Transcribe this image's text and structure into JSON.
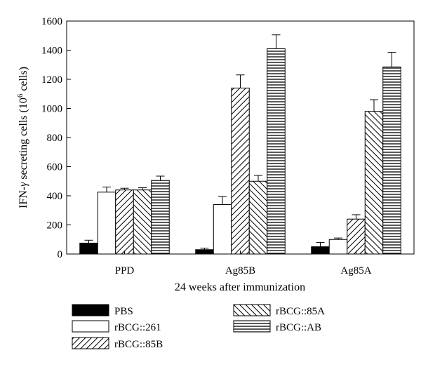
{
  "chart_data": {
    "type": "bar",
    "ylabel_prefix": "IFN-",
    "ylabel_greek": "γ",
    "ylabel_mid": " secreting cells (10",
    "ylabel_sup": "6",
    "ylabel_suffix": " cells)",
    "xlabel": "24 weeks after immunization",
    "ylim": [
      0,
      1600
    ],
    "yticks": [
      0,
      200,
      400,
      600,
      800,
      1000,
      1200,
      1400,
      1600
    ],
    "categories": [
      "PPD",
      "Ag85B",
      "Ag85A"
    ],
    "grid": false,
    "legend_position": "bottom",
    "series": [
      {
        "name": "PBS",
        "pattern": "solid-black",
        "values": [
          75,
          30,
          50
        ],
        "errors": [
          20,
          10,
          30
        ]
      },
      {
        "name": "rBCG::261",
        "pattern": "white",
        "values": [
          425,
          340,
          100
        ],
        "errors": [
          35,
          55,
          10
        ]
      },
      {
        "name": "rBCG::85B",
        "pattern": "diagonal-forward",
        "values": [
          440,
          1140,
          240
        ],
        "errors": [
          12,
          90,
          30
        ]
      },
      {
        "name": "rBCG::85A",
        "pattern": "diagonal-back",
        "values": [
          440,
          500,
          980
        ],
        "errors": [
          15,
          40,
          80
        ]
      },
      {
        "name": "rBCG::AB",
        "pattern": "horizontal",
        "values": [
          505,
          1410,
          1285
        ],
        "errors": [
          30,
          95,
          100
        ]
      }
    ]
  }
}
